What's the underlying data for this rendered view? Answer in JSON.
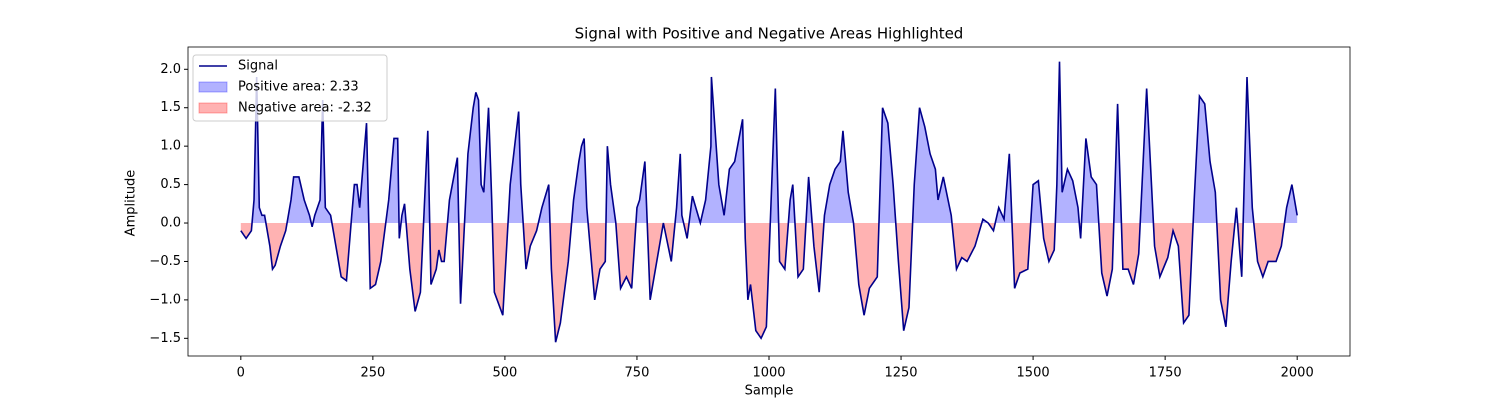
{
  "chart_data": {
    "type": "line",
    "title": "Signal with Positive and Negative Areas Highlighted",
    "x_label": "Sample",
    "y_label": "Amplitude",
    "x": [
      0,
      10,
      20,
      25,
      30,
      35,
      40,
      45,
      55,
      60,
      65,
      75,
      85,
      95,
      100,
      110,
      120,
      130,
      135,
      140,
      150,
      155,
      160,
      170,
      180,
      190,
      200,
      210,
      215,
      220,
      225,
      238,
      245,
      255,
      265,
      280,
      290,
      297,
      300,
      305,
      310,
      320,
      330,
      340,
      354,
      360,
      370,
      375,
      380,
      385,
      395,
      410,
      416,
      430,
      440,
      445,
      450,
      455,
      460,
      469,
      475,
      480,
      496,
      510,
      526,
      530,
      540,
      548,
      560,
      570,
      583,
      588,
      596,
      605,
      620,
      630,
      640,
      645,
      650,
      655,
      665,
      670,
      680,
      690,
      694,
      700,
      710,
      719,
      730,
      740,
      750,
      755,
      765,
      775,
      785,
      800,
      815,
      825,
      832,
      835,
      845,
      855,
      870,
      880,
      890,
      891,
      905,
      915,
      925,
      935,
      950,
      955,
      960,
      965,
      975,
      985,
      995,
      1012,
      1020,
      1030,
      1040,
      1045,
      1055,
      1065,
      1075,
      1085,
      1095,
      1105,
      1115,
      1125,
      1135,
      1140,
      1150,
      1160,
      1170,
      1180,
      1190,
      1205,
      1215,
      1225,
      1235,
      1245,
      1255,
      1265,
      1275,
      1285,
      1295,
      1305,
      1315,
      1320,
      1330,
      1345,
      1355,
      1365,
      1375,
      1390,
      1405,
      1415,
      1425,
      1435,
      1445,
      1455,
      1465,
      1475,
      1490,
      1500,
      1510,
      1520,
      1530,
      1540,
      1545,
      1550,
      1555,
      1565,
      1575,
      1585,
      1590,
      1600,
      1610,
      1620,
      1630,
      1640,
      1650,
      1660,
      1670,
      1680,
      1690,
      1700,
      1715,
      1730,
      1740,
      1755,
      1765,
      1775,
      1785,
      1795,
      1805,
      1815,
      1825,
      1835,
      1845,
      1855,
      1865,
      1875,
      1885,
      1895,
      1905,
      1915,
      1925,
      1935,
      1945,
      1960,
      1970,
      1980,
      1990,
      2000
    ],
    "series": [
      {
        "name": "Signal",
        "color": "#00008b",
        "values": [
          -0.1,
          -0.2,
          -0.1,
          0.3,
          1.9,
          0.2,
          0.1,
          0.1,
          -0.3,
          -0.6,
          -0.55,
          -0.3,
          -0.1,
          0.3,
          0.6,
          0.6,
          0.3,
          0.1,
          -0.05,
          0.1,
          0.3,
          1.6,
          0.2,
          0.1,
          -0.3,
          -0.7,
          -0.75,
          0.1,
          0.5,
          0.5,
          0.2,
          1.3,
          -0.85,
          -0.8,
          -0.5,
          0.3,
          1.1,
          1.1,
          -0.2,
          0.1,
          0.25,
          -0.6,
          -1.15,
          -0.9,
          1.2,
          -0.8,
          -0.6,
          -0.35,
          -0.5,
          -0.5,
          0.3,
          0.85,
          -1.05,
          0.9,
          1.5,
          1.7,
          1.6,
          0.5,
          0.4,
          1.5,
          0.3,
          -0.9,
          -1.2,
          0.5,
          1.45,
          0.5,
          -0.6,
          -0.3,
          -0.1,
          0.2,
          0.5,
          -0.6,
          -1.55,
          -1.3,
          -0.5,
          0.3,
          0.8,
          1.0,
          1.1,
          0.2,
          -0.6,
          -1.0,
          -0.6,
          -0.5,
          1.0,
          0.5,
          0.0,
          -0.85,
          -0.7,
          -0.85,
          0.2,
          0.3,
          0.8,
          -1.0,
          -0.6,
          0.0,
          -0.5,
          0.2,
          0.9,
          0.1,
          -0.2,
          0.35,
          0.0,
          0.3,
          1.0,
          1.9,
          0.5,
          0.1,
          0.7,
          0.8,
          1.35,
          -0.2,
          -1.0,
          -0.8,
          -1.4,
          -1.5,
          -1.35,
          1.75,
          -0.5,
          -0.6,
          0.3,
          0.5,
          -0.7,
          -0.6,
          0.6,
          -0.3,
          -0.9,
          0.1,
          0.5,
          0.7,
          0.8,
          1.2,
          0.4,
          0.0,
          -0.8,
          -1.2,
          -0.85,
          -0.7,
          1.5,
          1.3,
          0.5,
          -0.5,
          -1.4,
          -1.1,
          0.5,
          1.5,
          1.25,
          0.9,
          0.7,
          0.3,
          0.6,
          0.1,
          -0.6,
          -0.45,
          -0.5,
          -0.3,
          0.05,
          0.0,
          -0.1,
          0.2,
          0.05,
          0.9,
          -0.85,
          -0.65,
          -0.6,
          0.5,
          0.55,
          -0.2,
          -0.5,
          -0.35,
          0.5,
          2.1,
          0.4,
          0.7,
          0.55,
          0.2,
          -0.2,
          1.1,
          0.6,
          0.5,
          -0.65,
          -0.95,
          -0.6,
          1.55,
          -0.6,
          -0.6,
          -0.8,
          -0.4,
          1.75,
          -0.3,
          -0.7,
          -0.45,
          -0.1,
          -0.3,
          -1.3,
          -1.2,
          0.3,
          1.65,
          1.55,
          0.8,
          0.4,
          -1.0,
          -1.35,
          -0.5,
          0.2,
          -0.7,
          1.9,
          0.2,
          -0.5,
          -0.7,
          -0.5,
          -0.5,
          -0.3,
          0.2,
          0.5,
          0.1
        ]
      }
    ],
    "fills": [
      {
        "name": "Positive area: 2.33",
        "color": "#0000ff",
        "side": "positive"
      },
      {
        "name": "Negative area: -2.32",
        "color": "#ff0000",
        "side": "negative"
      }
    ],
    "xlim": [
      -100,
      2100
    ],
    "ylim": [
      -1.73,
      2.29
    ],
    "xticks": [
      0,
      250,
      500,
      750,
      1000,
      1250,
      1500,
      1750,
      2000
    ],
    "yticks": [
      {
        "value": -1.5,
        "label": "−1.5"
      },
      {
        "value": -1.0,
        "label": "−1.0"
      },
      {
        "value": -0.5,
        "label": "−0.5"
      },
      {
        "value": 0.0,
        "label": "0.0"
      },
      {
        "value": 0.5,
        "label": "0.5"
      },
      {
        "value": 1.0,
        "label": "1.0"
      },
      {
        "value": 1.5,
        "label": "1.5"
      },
      {
        "value": 2.0,
        "label": "2.0"
      }
    ],
    "legend": "upper left"
  }
}
